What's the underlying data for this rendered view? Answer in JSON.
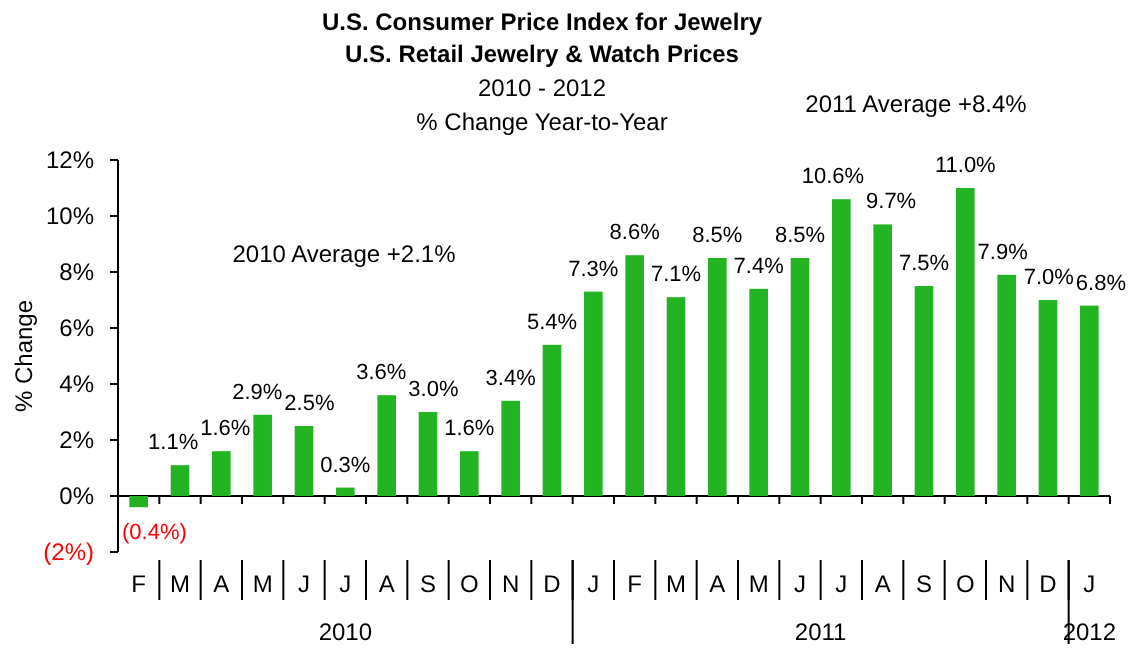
{
  "chart_data": {
    "type": "bar",
    "title": "U.S. Consumer Price Index for Jewelry\nU.S. Retail Jewelry & Watch Prices",
    "subtitle": "2010 - 2012\n% Change Year-to-Year",
    "ylabel": "% Change",
    "categories": [
      "F",
      "M",
      "A",
      "M",
      "J",
      "J",
      "A",
      "S",
      "O",
      "N",
      "D",
      "J",
      "F",
      "M",
      "A",
      "M",
      "J",
      "J",
      "A",
      "S",
      "O",
      "N",
      "D",
      "J"
    ],
    "values": [
      -0.4,
      1.1,
      1.6,
      2.9,
      2.5,
      0.3,
      3.6,
      3.0,
      1.6,
      3.4,
      5.4,
      7.3,
      8.6,
      7.1,
      8.5,
      7.4,
      8.5,
      10.6,
      9.7,
      7.5,
      11.0,
      7.9,
      7.0,
      6.8
    ],
    "value_labels": [
      "(0.4%)",
      "1.1%",
      "1.6%",
      "2.9%",
      "2.5%",
      "0.3%",
      "3.6%",
      "3.0%",
      "1.6%",
      "3.4%",
      "5.4%",
      "7.3%",
      "8.6%",
      "7.1%",
      "8.5%",
      "7.4%",
      "8.5%",
      "10.6%",
      "9.7%",
      "7.5%",
      "11.0%",
      "7.9%",
      "7.0%",
      "6.8%"
    ],
    "color": "#22b422",
    "ylim": [
      -2,
      12
    ],
    "yticks": [
      {
        "value": -2,
        "label": "(2%)"
      },
      {
        "value": 0,
        "label": "0%"
      },
      {
        "value": 2,
        "label": "2%"
      },
      {
        "value": 4,
        "label": "4%"
      },
      {
        "value": 6,
        "label": "6%"
      },
      {
        "value": 8,
        "label": "8%"
      },
      {
        "value": 10,
        "label": "10%"
      },
      {
        "value": 12,
        "label": "12%"
      }
    ],
    "annotations": [
      "2010 Average +2.1%",
      "2011 Average +8.4%",
      "2010",
      "2011",
      "2012"
    ]
  }
}
